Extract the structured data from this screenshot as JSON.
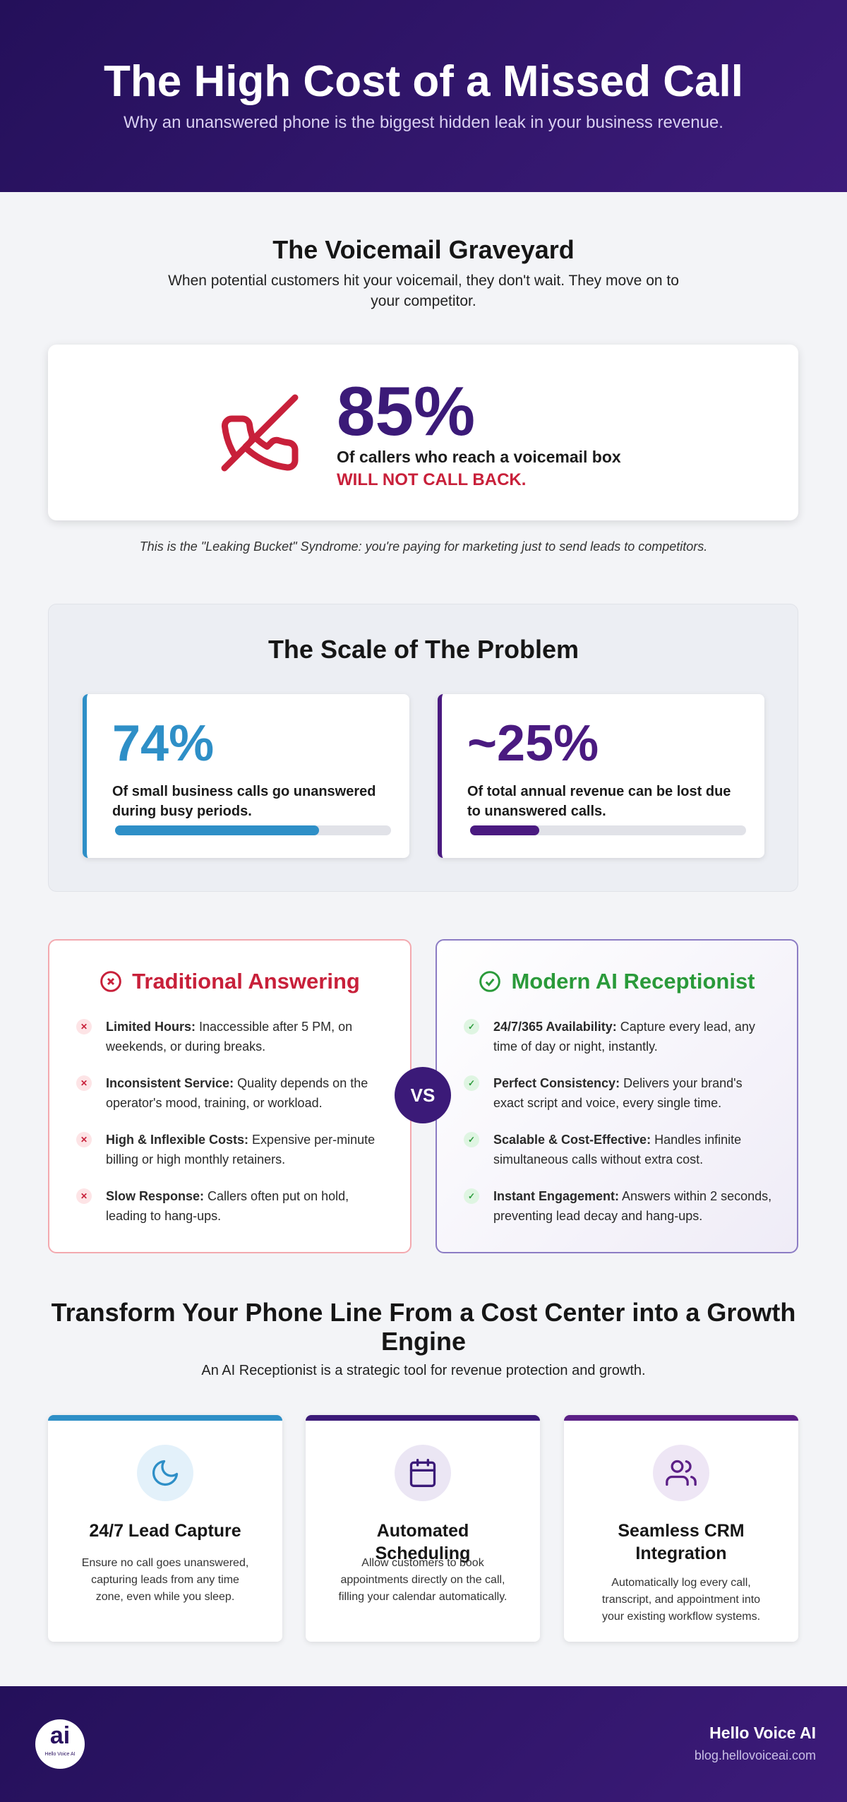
{
  "header": {
    "title": "The High Cost of a Missed Call",
    "subtitle": "Why an unanswered phone is the biggest hidden leak in your business revenue."
  },
  "voicemail": {
    "title": "The Voicemail Graveyard",
    "text": "When potential customers hit your voicemail, they don't wait. They move on to your competitor.",
    "stat": "85%",
    "stat_text": "Of callers who reach a voicemail box",
    "stat_emphasis": "WILL NOT CALL BACK.",
    "note": "This is the \"Leaking Bucket\" Syndrome: you're paying for marketing just to send leads to competitors."
  },
  "scale": {
    "title": "The Scale of The Problem",
    "stats": [
      {
        "label": "74%",
        "value": 74,
        "text": "Of small business calls go unanswered during busy periods.",
        "color": "#2e8fc7"
      },
      {
        "label": "~25%",
        "value": 25,
        "text": "Of total annual revenue can be lost due to unanswered calls.",
        "color": "#4a1a80"
      }
    ]
  },
  "comparison": {
    "vs": "VS",
    "traditional": {
      "title": "Traditional Answering",
      "items": [
        {
          "term": "Limited Hours:",
          "text": "Inaccessible after 5 PM, on weekends, or during breaks."
        },
        {
          "term": "Inconsistent Service:",
          "text": "Quality depends on the operator's mood, training, or workload."
        },
        {
          "term": "High & Inflexible Costs:",
          "text": "Expensive per-minute billing or high monthly retainers."
        },
        {
          "term": "Slow Response:",
          "text": "Callers often put on hold, leading to hang-ups."
        }
      ]
    },
    "modern": {
      "title": "Modern AI Receptionist",
      "items": [
        {
          "term": "24/7/365 Availability:",
          "text": "Capture every lead, any time of day or night, instantly."
        },
        {
          "term": "Perfect Consistency:",
          "text": "Delivers your brand's exact script and voice, every single time."
        },
        {
          "term": "Scalable & Cost-Effective:",
          "text": "Handles infinite simultaneous calls without extra cost."
        },
        {
          "term": "Instant Engagement:",
          "text": "Answers within 2 seconds, preventing lead decay and hang-ups."
        }
      ]
    }
  },
  "transform": {
    "title": "Transform Your Phone Line From a Cost Center into a Growth Engine",
    "subtitle": "An AI Receptionist is a strategic tool for revenue protection and growth.",
    "features": [
      {
        "title": "24/7 Lead Capture",
        "text": "Ensure no call goes unanswered, capturing leads from any time zone, even while you sleep."
      },
      {
        "title": "Automated Scheduling",
        "text": "Allow customers to book appointments directly on the call, filling your calendar automatically."
      },
      {
        "title": "Seamless CRM Integration",
        "text": "Automatically log every call, transcript, and appointment into your existing workflow systems."
      }
    ]
  },
  "footer": {
    "logo_mark": "ai",
    "logo_caption": "Hello Voice AI",
    "brand": "Hello Voice AI",
    "url": "blog.hellovoiceai.com"
  }
}
